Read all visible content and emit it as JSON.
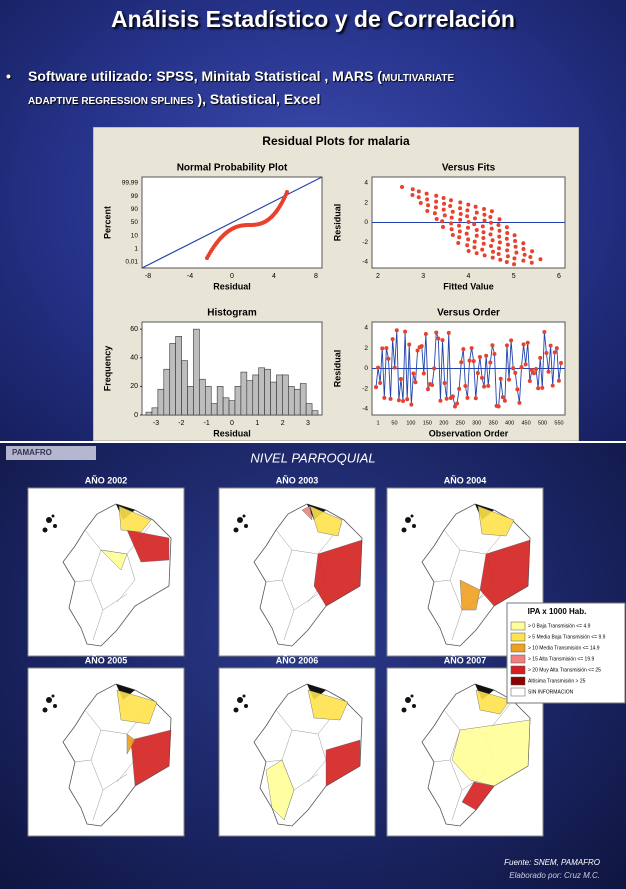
{
  "slide1": {
    "title": "Análisis Estadístico y de Correlación",
    "bullet": {
      "marker": "•",
      "parts": [
        "Software utilizado: SPSS, Minitab Statistical , MARS (",
        "MULTIVARIATE",
        "ADAPTIVE REGRESSION SPLINES",
        " ), Statistical, Excel"
      ]
    },
    "figure": {
      "title": "Residual Plots for malaria",
      "panels": [
        {
          "title": "Normal Probability Plot",
          "xlabel": "Residual",
          "ylabel": "Percent",
          "xticks": [
            "-8",
            "-4",
            "0",
            "4",
            "8"
          ],
          "yticks": [
            "0,01",
            "1",
            "10",
            "50",
            "90",
            "99",
            "99,99"
          ]
        },
        {
          "title": "Versus Fits",
          "xlabel": "Fitted Value",
          "ylabel": "Residual",
          "xticks": [
            "2",
            "3",
            "4",
            "5",
            "6"
          ],
          "yticks": [
            "-4",
            "-2",
            "0",
            "2",
            "4"
          ]
        },
        {
          "title": "Histogram",
          "xlabel": "Residual",
          "ylabel": "Frequency",
          "xticks": [
            "-3",
            "-2",
            "-1",
            "0",
            "1",
            "2",
            "3"
          ],
          "ylim": [
            0,
            65
          ],
          "yticks": [
            0,
            20,
            40,
            60
          ],
          "counts": [
            2,
            5,
            18,
            32,
            50,
            55,
            38,
            20,
            60,
            25,
            20,
            8,
            20,
            12,
            10,
            20,
            30,
            24,
            28,
            33,
            32,
            23,
            28,
            28,
            20,
            18,
            22,
            8,
            3
          ]
        },
        {
          "title": "Versus Order",
          "xlabel": "Observation Order",
          "ylabel": "Residual",
          "xticks": [
            "1",
            "50",
            "100",
            "150",
            "200",
            "250",
            "300",
            "350",
            "400",
            "450",
            "500",
            "550"
          ],
          "yticks": [
            "-4",
            "-2",
            "0",
            "2",
            "4"
          ]
        }
      ]
    }
  },
  "slide2": {
    "logo": "PAMAFRO",
    "header": "NIVEL PARROQUIAL",
    "maps": [
      "AÑO 2002",
      "AÑO 2003",
      "AÑO 2004",
      "AÑO 2005",
      "AÑO 2006",
      "AÑO 2007"
    ],
    "legend": {
      "title": "IPA x 1000 Hab.",
      "items": [
        "> 0 Baja Transmisión <= 4.9",
        "> 5 Media Baja Transmisión <= 9.9",
        "> 10 Media Transmisión <= 14.9",
        "> 15 Alta Transmisión <= 19.9",
        "> 20 Muy Alta Transmisión <= 25",
        "Altísima Transmisión > 25",
        "SIN INFORMACION"
      ]
    },
    "source": "Fuente: SNEM, PAMAFRO",
    "credit": "Elaborado por: Cruz M.C."
  }
}
